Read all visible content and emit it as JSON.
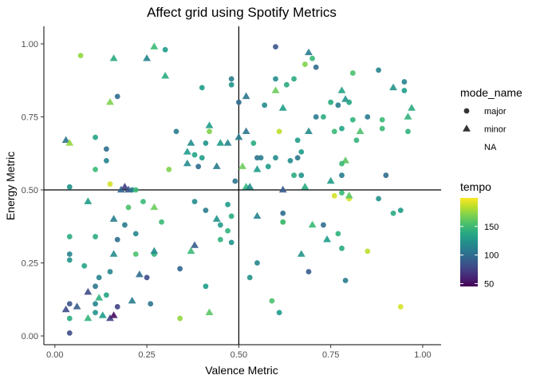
{
  "chart_data": {
    "type": "scatter",
    "title": "Affect grid using Spotify Metrics",
    "xlabel": "Valence Metric",
    "ylabel": "Energy Metric",
    "xlim": [
      -0.03,
      1.05
    ],
    "ylim": [
      -0.03,
      1.06
    ],
    "x_ticks": [
      0.0,
      0.25,
      0.5,
      0.75,
      1.0
    ],
    "x_tick_labels": [
      "0.00",
      "0.25",
      "0.50",
      "0.75",
      "1.00"
    ],
    "y_ticks": [
      0.0,
      0.25,
      0.5,
      0.75,
      1.0
    ],
    "y_tick_labels": [
      "0.00",
      "0.25",
      "0.50",
      "0.75",
      "1.00"
    ],
    "reference_lines": {
      "x": 0.5,
      "y": 0.5
    },
    "grid": false,
    "legend_position": "right",
    "shape_legend": {
      "title": "mode_name",
      "entries": [
        {
          "label": "major",
          "shape": "circle"
        },
        {
          "label": "minor",
          "shape": "triangle"
        },
        {
          "label": "NA",
          "shape": "none"
        }
      ]
    },
    "color_legend": {
      "title": "tempo",
      "scale": "viridis",
      "min": 45,
      "max": 200,
      "ticks": [
        50,
        100,
        150
      ],
      "tick_labels": [
        "50",
        "100",
        "150"
      ]
    },
    "points": [
      {
        "x": 0.07,
        "y": 0.96,
        "mode": "major",
        "tempo": 175
      },
      {
        "x": 0.16,
        "y": 0.95,
        "mode": "minor",
        "tempo": 140
      },
      {
        "x": 0.27,
        "y": 0.99,
        "mode": "minor",
        "tempo": 150
      },
      {
        "x": 0.3,
        "y": 0.98,
        "mode": "major",
        "tempo": 130
      },
      {
        "x": 0.25,
        "y": 0.95,
        "mode": "minor",
        "tempo": 115
      },
      {
        "x": 0.3,
        "y": 0.89,
        "mode": "minor",
        "tempo": 140
      },
      {
        "x": 0.6,
        "y": 0.99,
        "mode": "major",
        "tempo": 85
      },
      {
        "x": 0.69,
        "y": 0.97,
        "mode": "minor",
        "tempo": 110
      },
      {
        "x": 0.7,
        "y": 0.95,
        "mode": "major",
        "tempo": 150
      },
      {
        "x": 0.68,
        "y": 0.93,
        "mode": "major",
        "tempo": 170
      },
      {
        "x": 0.71,
        "y": 0.92,
        "mode": "major",
        "tempo": 100
      },
      {
        "x": 0.81,
        "y": 0.9,
        "mode": "major",
        "tempo": 155
      },
      {
        "x": 0.88,
        "y": 0.91,
        "mode": "major",
        "tempo": 115
      },
      {
        "x": 0.92,
        "y": 0.85,
        "mode": "minor",
        "tempo": 125
      },
      {
        "x": 0.95,
        "y": 0.87,
        "mode": "major",
        "tempo": 115
      },
      {
        "x": 0.95,
        "y": 0.84,
        "mode": "major",
        "tempo": 130
      },
      {
        "x": 0.97,
        "y": 0.78,
        "mode": "minor",
        "tempo": 140
      },
      {
        "x": 0.96,
        "y": 0.75,
        "mode": "minor",
        "tempo": 145
      },
      {
        "x": 0.96,
        "y": 0.7,
        "mode": "major",
        "tempo": 145
      },
      {
        "x": 0.17,
        "y": 0.82,
        "mode": "major",
        "tempo": 100
      },
      {
        "x": 0.15,
        "y": 0.8,
        "mode": "minor",
        "tempo": 170
      },
      {
        "x": 0.48,
        "y": 0.88,
        "mode": "major",
        "tempo": 110
      },
      {
        "x": 0.48,
        "y": 0.86,
        "mode": "major",
        "tempo": 125
      },
      {
        "x": 0.4,
        "y": 0.85,
        "mode": "major",
        "tempo": 130
      },
      {
        "x": 0.6,
        "y": 0.88,
        "mode": "major",
        "tempo": 120
      },
      {
        "x": 0.63,
        "y": 0.86,
        "mode": "major",
        "tempo": 140
      },
      {
        "x": 0.6,
        "y": 0.84,
        "mode": "minor",
        "tempo": 165
      },
      {
        "x": 0.65,
        "y": 0.88,
        "mode": "major",
        "tempo": 140
      },
      {
        "x": 0.52,
        "y": 0.82,
        "mode": "minor",
        "tempo": 105
      },
      {
        "x": 0.5,
        "y": 0.8,
        "mode": "major",
        "tempo": 100
      },
      {
        "x": 0.57,
        "y": 0.79,
        "mode": "major",
        "tempo": 120
      },
      {
        "x": 0.62,
        "y": 0.78,
        "mode": "minor",
        "tempo": 130
      },
      {
        "x": 0.75,
        "y": 0.8,
        "mode": "major",
        "tempo": 140
      },
      {
        "x": 0.77,
        "y": 0.79,
        "mode": "major",
        "tempo": 110
      },
      {
        "x": 0.78,
        "y": 0.84,
        "mode": "minor",
        "tempo": 135
      },
      {
        "x": 0.79,
        "y": 0.81,
        "mode": "minor",
        "tempo": 125
      },
      {
        "x": 0.8,
        "y": 0.8,
        "mode": "major",
        "tempo": 135
      },
      {
        "x": 0.03,
        "y": 0.67,
        "mode": "minor",
        "tempo": 105
      },
      {
        "x": 0.04,
        "y": 0.66,
        "mode": "minor",
        "tempo": 175
      },
      {
        "x": 0.11,
        "y": 0.68,
        "mode": "major",
        "tempo": 135
      },
      {
        "x": 0.14,
        "y": 0.64,
        "mode": "major",
        "tempo": 100
      },
      {
        "x": 0.14,
        "y": 0.6,
        "mode": "major",
        "tempo": 115
      },
      {
        "x": 0.11,
        "y": 0.57,
        "mode": "major",
        "tempo": 150
      },
      {
        "x": 0.15,
        "y": 0.52,
        "mode": "major",
        "tempo": 190
      },
      {
        "x": 0.18,
        "y": 0.5,
        "mode": "minor",
        "tempo": 95
      },
      {
        "x": 0.19,
        "y": 0.51,
        "mode": "minor",
        "tempo": 75
      },
      {
        "x": 0.2,
        "y": 0.5,
        "mode": "minor",
        "tempo": 85
      },
      {
        "x": 0.21,
        "y": 0.5,
        "mode": "major",
        "tempo": 110
      },
      {
        "x": 0.22,
        "y": 0.5,
        "mode": "major",
        "tempo": 150
      },
      {
        "x": 0.04,
        "y": 0.51,
        "mode": "major",
        "tempo": 125
      },
      {
        "x": 0.33,
        "y": 0.7,
        "mode": "major",
        "tempo": 110
      },
      {
        "x": 0.42,
        "y": 0.72,
        "mode": "minor",
        "tempo": 130
      },
      {
        "x": 0.42,
        "y": 0.7,
        "mode": "major",
        "tempo": 170
      },
      {
        "x": 0.37,
        "y": 0.66,
        "mode": "minor",
        "tempo": 120
      },
      {
        "x": 0.41,
        "y": 0.66,
        "mode": "major",
        "tempo": 125
      },
      {
        "x": 0.4,
        "y": 0.61,
        "mode": "major",
        "tempo": 130
      },
      {
        "x": 0.38,
        "y": 0.62,
        "mode": "major",
        "tempo": 135
      },
      {
        "x": 0.36,
        "y": 0.63,
        "mode": "minor",
        "tempo": 130
      },
      {
        "x": 0.36,
        "y": 0.59,
        "mode": "minor",
        "tempo": 120
      },
      {
        "x": 0.39,
        "y": 0.58,
        "mode": "major",
        "tempo": 100
      },
      {
        "x": 0.31,
        "y": 0.57,
        "mode": "major",
        "tempo": 170
      },
      {
        "x": 0.45,
        "y": 0.66,
        "mode": "minor",
        "tempo": 130
      },
      {
        "x": 0.47,
        "y": 0.66,
        "mode": "minor",
        "tempo": 115
      },
      {
        "x": 0.5,
        "y": 0.68,
        "mode": "minor",
        "tempo": 110
      },
      {
        "x": 0.44,
        "y": 0.58,
        "mode": "minor",
        "tempo": 110
      },
      {
        "x": 0.52,
        "y": 0.7,
        "mode": "minor",
        "tempo": 105
      },
      {
        "x": 0.54,
        "y": 0.66,
        "mode": "major",
        "tempo": 140
      },
      {
        "x": 0.61,
        "y": 0.7,
        "mode": "major",
        "tempo": 185
      },
      {
        "x": 0.55,
        "y": 0.61,
        "mode": "major",
        "tempo": 105
      },
      {
        "x": 0.56,
        "y": 0.61,
        "mode": "major",
        "tempo": 110
      },
      {
        "x": 0.6,
        "y": 0.61,
        "mode": "major",
        "tempo": 120
      },
      {
        "x": 0.66,
        "y": 0.67,
        "mode": "major",
        "tempo": 130
      },
      {
        "x": 0.69,
        "y": 0.7,
        "mode": "minor",
        "tempo": 120
      },
      {
        "x": 0.71,
        "y": 0.75,
        "mode": "major",
        "tempo": 110
      },
      {
        "x": 0.73,
        "y": 0.75,
        "mode": "major",
        "tempo": 140
      },
      {
        "x": 0.76,
        "y": 0.7,
        "mode": "major",
        "tempo": 150
      },
      {
        "x": 0.78,
        "y": 0.71,
        "mode": "major",
        "tempo": 135
      },
      {
        "x": 0.81,
        "y": 0.74,
        "mode": "major",
        "tempo": 145
      },
      {
        "x": 0.83,
        "y": 0.7,
        "mode": "minor",
        "tempo": 155
      },
      {
        "x": 0.85,
        "y": 0.75,
        "mode": "major",
        "tempo": 110
      },
      {
        "x": 0.89,
        "y": 0.74,
        "mode": "major",
        "tempo": 150
      },
      {
        "x": 0.89,
        "y": 0.71,
        "mode": "major",
        "tempo": 150
      },
      {
        "x": 0.82,
        "y": 0.67,
        "mode": "major",
        "tempo": 145
      },
      {
        "x": 0.67,
        "y": 0.63,
        "mode": "major",
        "tempo": 130
      },
      {
        "x": 0.64,
        "y": 0.6,
        "mode": "major",
        "tempo": 120
      },
      {
        "x": 0.66,
        "y": 0.61,
        "mode": "major",
        "tempo": 105
      },
      {
        "x": 0.79,
        "y": 0.6,
        "mode": "minor",
        "tempo": 160
      },
      {
        "x": 0.78,
        "y": 0.59,
        "mode": "major",
        "tempo": 150
      },
      {
        "x": 0.49,
        "y": 0.53,
        "mode": "major",
        "tempo": 105
      },
      {
        "x": 0.51,
        "y": 0.58,
        "mode": "minor",
        "tempo": 165
      },
      {
        "x": 0.52,
        "y": 0.51,
        "mode": "minor",
        "tempo": 145
      },
      {
        "x": 0.53,
        "y": 0.51,
        "mode": "minor",
        "tempo": 120
      },
      {
        "x": 0.55,
        "y": 0.57,
        "mode": "minor",
        "tempo": 130
      },
      {
        "x": 0.58,
        "y": 0.58,
        "mode": "major",
        "tempo": 130
      },
      {
        "x": 0.62,
        "y": 0.5,
        "mode": "minor",
        "tempo": 90
      },
      {
        "x": 0.65,
        "y": 0.55,
        "mode": "major",
        "tempo": 140
      },
      {
        "x": 0.67,
        "y": 0.55,
        "mode": "major",
        "tempo": 125
      },
      {
        "x": 0.68,
        "y": 0.51,
        "mode": "minor",
        "tempo": 140
      },
      {
        "x": 0.75,
        "y": 0.53,
        "mode": "minor",
        "tempo": 130
      },
      {
        "x": 0.78,
        "y": 0.55,
        "mode": "major",
        "tempo": 110
      },
      {
        "x": 0.76,
        "y": 0.48,
        "mode": "major",
        "tempo": 190
      },
      {
        "x": 0.78,
        "y": 0.49,
        "mode": "major",
        "tempo": 150
      },
      {
        "x": 0.8,
        "y": 0.47,
        "mode": "major",
        "tempo": 190
      },
      {
        "x": 0.8,
        "y": 0.48,
        "mode": "minor",
        "tempo": 160
      },
      {
        "x": 0.88,
        "y": 0.47,
        "mode": "major",
        "tempo": 125
      },
      {
        "x": 0.9,
        "y": 0.55,
        "mode": "major",
        "tempo": 100
      },
      {
        "x": 0.92,
        "y": 0.42,
        "mode": "major",
        "tempo": 140
      },
      {
        "x": 0.94,
        "y": 0.43,
        "mode": "major",
        "tempo": 130
      },
      {
        "x": 0.09,
        "y": 0.46,
        "mode": "minor",
        "tempo": 130
      },
      {
        "x": 0.2,
        "y": 0.44,
        "mode": "major",
        "tempo": 155
      },
      {
        "x": 0.24,
        "y": 0.46,
        "mode": "major",
        "tempo": 150
      },
      {
        "x": 0.27,
        "y": 0.44,
        "mode": "minor",
        "tempo": 165
      },
      {
        "x": 0.29,
        "y": 0.39,
        "mode": "major",
        "tempo": 150
      },
      {
        "x": 0.16,
        "y": 0.4,
        "mode": "minor",
        "tempo": 110
      },
      {
        "x": 0.19,
        "y": 0.38,
        "mode": "major",
        "tempo": 110
      },
      {
        "x": 0.22,
        "y": 0.35,
        "mode": "major",
        "tempo": 115
      },
      {
        "x": 0.17,
        "y": 0.33,
        "mode": "major",
        "tempo": 100
      },
      {
        "x": 0.04,
        "y": 0.34,
        "mode": "major",
        "tempo": 140
      },
      {
        "x": 0.11,
        "y": 0.34,
        "mode": "major",
        "tempo": 140
      },
      {
        "x": 0.38,
        "y": 0.46,
        "mode": "major",
        "tempo": 120
      },
      {
        "x": 0.41,
        "y": 0.43,
        "mode": "major",
        "tempo": 110
      },
      {
        "x": 0.44,
        "y": 0.4,
        "mode": "minor",
        "tempo": 125
      },
      {
        "x": 0.45,
        "y": 0.38,
        "mode": "major",
        "tempo": 130
      },
      {
        "x": 0.47,
        "y": 0.45,
        "mode": "major",
        "tempo": 130
      },
      {
        "x": 0.48,
        "y": 0.41,
        "mode": "major",
        "tempo": 140
      },
      {
        "x": 0.47,
        "y": 0.36,
        "mode": "major",
        "tempo": 145
      },
      {
        "x": 0.45,
        "y": 0.33,
        "mode": "major",
        "tempo": 145
      },
      {
        "x": 0.48,
        "y": 0.32,
        "mode": "major",
        "tempo": 125
      },
      {
        "x": 0.55,
        "y": 0.41,
        "mode": "minor",
        "tempo": 115
      },
      {
        "x": 0.62,
        "y": 0.42,
        "mode": "major",
        "tempo": 100
      },
      {
        "x": 0.62,
        "y": 0.39,
        "mode": "major",
        "tempo": 175
      },
      {
        "x": 0.62,
        "y": 0.39,
        "mode": "major",
        "tempo": 150
      },
      {
        "x": 0.7,
        "y": 0.38,
        "mode": "minor",
        "tempo": 150
      },
      {
        "x": 0.73,
        "y": 0.38,
        "mode": "major",
        "tempo": 100
      },
      {
        "x": 0.74,
        "y": 0.33,
        "mode": "minor",
        "tempo": 130
      },
      {
        "x": 0.77,
        "y": 0.35,
        "mode": "major",
        "tempo": 145
      },
      {
        "x": 0.78,
        "y": 0.3,
        "mode": "major",
        "tempo": 140
      },
      {
        "x": 0.85,
        "y": 0.29,
        "mode": "major",
        "tempo": 185
      },
      {
        "x": 0.67,
        "y": 0.28,
        "mode": "minor",
        "tempo": 125
      },
      {
        "x": 0.04,
        "y": 0.28,
        "mode": "major",
        "tempo": 115
      },
      {
        "x": 0.04,
        "y": 0.26,
        "mode": "major",
        "tempo": 125
      },
      {
        "x": 0.08,
        "y": 0.24,
        "mode": "major",
        "tempo": 135
      },
      {
        "x": 0.16,
        "y": 0.28,
        "mode": "minor",
        "tempo": 120
      },
      {
        "x": 0.22,
        "y": 0.28,
        "mode": "major",
        "tempo": 155
      },
      {
        "x": 0.27,
        "y": 0.28,
        "mode": "major",
        "tempo": 145
      },
      {
        "x": 0.27,
        "y": 0.29,
        "mode": "minor",
        "tempo": 120
      },
      {
        "x": 0.37,
        "y": 0.29,
        "mode": "minor",
        "tempo": 150
      },
      {
        "x": 0.38,
        "y": 0.31,
        "mode": "minor",
        "tempo": 90
      },
      {
        "x": 0.34,
        "y": 0.23,
        "mode": "major",
        "tempo": 95
      },
      {
        "x": 0.12,
        "y": 0.2,
        "mode": "major",
        "tempo": 115
      },
      {
        "x": 0.11,
        "y": 0.17,
        "mode": "major",
        "tempo": 105
      },
      {
        "x": 0.15,
        "y": 0.22,
        "mode": "major",
        "tempo": 115
      },
      {
        "x": 0.23,
        "y": 0.21,
        "mode": "minor",
        "tempo": 100
      },
      {
        "x": 0.25,
        "y": 0.2,
        "mode": "major",
        "tempo": 80
      },
      {
        "x": 0.41,
        "y": 0.17,
        "mode": "major",
        "tempo": 130
      },
      {
        "x": 0.55,
        "y": 0.25,
        "mode": "major",
        "tempo": 115
      },
      {
        "x": 0.53,
        "y": 0.2,
        "mode": "major",
        "tempo": 125
      },
      {
        "x": 0.69,
        "y": 0.22,
        "mode": "major",
        "tempo": 90
      },
      {
        "x": 0.79,
        "y": 0.19,
        "mode": "major",
        "tempo": 110
      },
      {
        "x": 0.14,
        "y": 0.14,
        "mode": "major",
        "tempo": 135
      },
      {
        "x": 0.12,
        "y": 0.13,
        "mode": "minor",
        "tempo": 145
      },
      {
        "x": 0.09,
        "y": 0.15,
        "mode": "minor",
        "tempo": 80
      },
      {
        "x": 0.11,
        "y": 0.11,
        "mode": "major",
        "tempo": 115
      },
      {
        "x": 0.21,
        "y": 0.12,
        "mode": "minor",
        "tempo": 110
      },
      {
        "x": 0.26,
        "y": 0.11,
        "mode": "major",
        "tempo": 105
      },
      {
        "x": 0.04,
        "y": 0.11,
        "mode": "major",
        "tempo": 85
      },
      {
        "x": 0.03,
        "y": 0.09,
        "mode": "minor",
        "tempo": 80
      },
      {
        "x": 0.06,
        "y": 0.1,
        "mode": "minor",
        "tempo": 90
      },
      {
        "x": 0.17,
        "y": 0.1,
        "mode": "major",
        "tempo": 75
      },
      {
        "x": 0.04,
        "y": 0.06,
        "mode": "major",
        "tempo": 140
      },
      {
        "x": 0.09,
        "y": 0.06,
        "mode": "minor",
        "tempo": 145
      },
      {
        "x": 0.11,
        "y": 0.08,
        "mode": "major",
        "tempo": 125
      },
      {
        "x": 0.13,
        "y": 0.07,
        "mode": "minor",
        "tempo": 130
      },
      {
        "x": 0.15,
        "y": 0.06,
        "mode": "minor",
        "tempo": 75
      },
      {
        "x": 0.16,
        "y": 0.07,
        "mode": "minor",
        "tempo": 50
      },
      {
        "x": 0.04,
        "y": 0.01,
        "mode": "major",
        "tempo": 80
      },
      {
        "x": 0.34,
        "y": 0.06,
        "mode": "major",
        "tempo": 175
      },
      {
        "x": 0.42,
        "y": 0.08,
        "mode": "minor",
        "tempo": 160
      },
      {
        "x": 0.59,
        "y": 0.12,
        "mode": "major",
        "tempo": 155
      },
      {
        "x": 0.61,
        "y": 0.08,
        "mode": "major",
        "tempo": 130
      },
      {
        "x": 0.94,
        "y": 0.1,
        "mode": "major",
        "tempo": 190
      }
    ]
  }
}
